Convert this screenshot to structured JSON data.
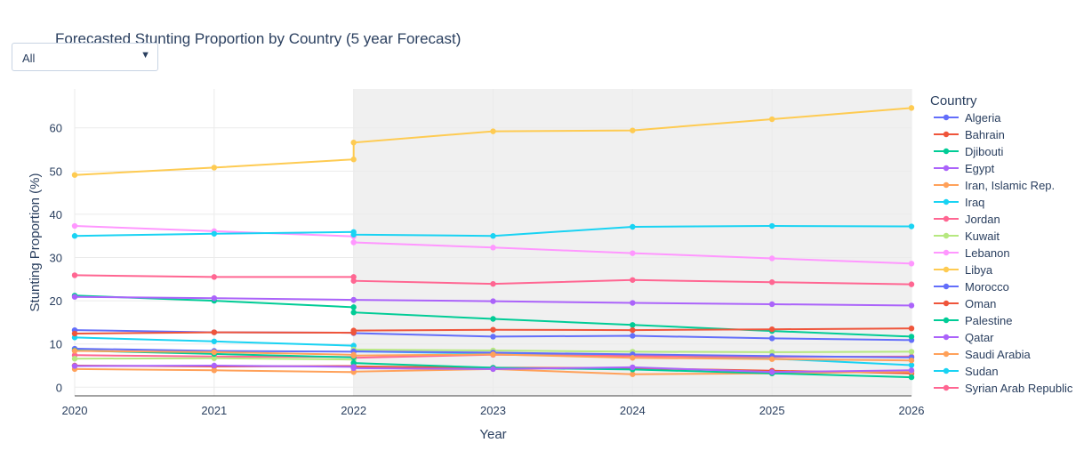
{
  "title": "Forecasted Stunting Proportion by Country (5 year Forecast)",
  "filter": {
    "value": "All"
  },
  "chart_data": {
    "type": "line",
    "title": "Forecasted Stunting Proportion by Country (5 year Forecast)",
    "xlabel": "Year",
    "ylabel": "Stunting Proportion (%)",
    "x_ticks": [
      "2020",
      "2021",
      "2022",
      "2023",
      "2024",
      "2025",
      "2026"
    ],
    "y_ticks": [
      "0",
      "10",
      "20",
      "30",
      "40",
      "50",
      "60"
    ],
    "xlim": [
      2020,
      2026
    ],
    "ylim": [
      -2,
      69
    ],
    "forecast_shade_start": 2022,
    "forecast_shade_color": "#f0f0f0",
    "legend_title": "Country",
    "legend_position": "right",
    "series": [
      {
        "name": "Algeria",
        "color": "#636efa",
        "x": [
          2020,
          2021,
          2022,
          2022,
          2023,
          2024,
          2025,
          2026
        ],
        "values": [
          13.2,
          12.7,
          12.6,
          12.5,
          11.7,
          11.9,
          11.3,
          10.9
        ]
      },
      {
        "name": "Bahrain",
        "color": "#ef553b",
        "x": [
          2020,
          2021,
          2022,
          2022,
          2023,
          2024,
          2025,
          2026
        ],
        "values": [
          5.0,
          4.8,
          4.9,
          4.8,
          4.5,
          4.4,
          3.8,
          3.2
        ]
      },
      {
        "name": "Djibouti",
        "color": "#00cc96",
        "x": [
          2020,
          2021,
          2022,
          2022,
          2023,
          2024,
          2025,
          2026
        ],
        "values": [
          21.2,
          20.0,
          18.5,
          17.3,
          15.8,
          14.4,
          13.0,
          11.7
        ]
      },
      {
        "name": "Egypt",
        "color": "#ab63fa",
        "x": [
          2020,
          2021,
          2022,
          2022,
          2023,
          2024,
          2025,
          2026
        ],
        "values": [
          20.9,
          20.6,
          20.2,
          20.2,
          19.9,
          19.5,
          19.2,
          18.9
        ]
      },
      {
        "name": "Iran, Islamic Rep.",
        "color": "#ffa15a",
        "x": [
          2020,
          2021,
          2022,
          2022,
          2023,
          2024,
          2025,
          2026
        ],
        "values": [
          4.2,
          3.9,
          3.5,
          3.6,
          4.2,
          3.0,
          3.2,
          3.6
        ]
      },
      {
        "name": "Iraq",
        "color": "#19d3f3",
        "x": [
          2020,
          2021,
          2022,
          2022,
          2023,
          2024,
          2025,
          2026
        ],
        "values": [
          11.5,
          10.6,
          9.6,
          8.3,
          7.8,
          7.4,
          6.6,
          5.1
        ]
      },
      {
        "name": "Jordan",
        "color": "#ff6692",
        "x": [
          2020,
          2021,
          2022,
          2022,
          2023,
          2024,
          2025,
          2026
        ],
        "values": [
          7.4,
          7.1,
          7.0,
          6.8,
          7.5,
          7.2,
          7.0,
          7.1
        ]
      },
      {
        "name": "Kuwait",
        "color": "#b6e880",
        "x": [
          2020,
          2021,
          2022,
          2022,
          2023,
          2024,
          2025,
          2026
        ],
        "values": [
          6.6,
          6.7,
          6.4,
          8.7,
          8.5,
          8.2,
          8.1,
          8.2
        ]
      },
      {
        "name": "Lebanon",
        "color": "#ff97ff",
        "x": [
          2020,
          2021,
          2022,
          2022,
          2023,
          2024,
          2025,
          2026
        ],
        "values": [
          37.3,
          36.1,
          34.9,
          33.5,
          32.3,
          31.0,
          29.8,
          28.6
        ]
      },
      {
        "name": "Libya",
        "color": "#fecb52",
        "x": [
          2020,
          2021,
          2022,
          2022,
          2023,
          2024,
          2025,
          2026
        ],
        "values": [
          49.1,
          50.8,
          52.7,
          56.6,
          59.2,
          59.4,
          62.0,
          64.6
        ]
      },
      {
        "name": "Morocco",
        "color": "#636efa",
        "x": [
          2020,
          2021,
          2022,
          2022,
          2023,
          2024,
          2025,
          2026
        ],
        "values": [
          8.9,
          8.4,
          8.2,
          8.3,
          8.0,
          7.6,
          7.2,
          6.9
        ]
      },
      {
        "name": "Oman",
        "color": "#ef553b",
        "x": [
          2020,
          2021,
          2022,
          2022,
          2023,
          2024,
          2025,
          2026
        ],
        "values": [
          12.4,
          12.7,
          12.6,
          13.1,
          13.3,
          13.2,
          13.4,
          13.6
        ]
      },
      {
        "name": "Palestine",
        "color": "#00cc96",
        "x": [
          2020,
          2021,
          2022,
          2022,
          2023,
          2024,
          2025,
          2026
        ],
        "values": [
          8.5,
          7.7,
          6.9,
          5.6,
          4.5,
          4.1,
          3.2,
          2.3
        ]
      },
      {
        "name": "Qatar",
        "color": "#ab63fa",
        "x": [
          2020,
          2021,
          2022,
          2022,
          2023,
          2024,
          2025,
          2026
        ],
        "values": [
          4.9,
          5.0,
          4.7,
          4.4,
          4.2,
          4.6,
          3.5,
          3.9
        ]
      },
      {
        "name": "Saudi Arabia",
        "color": "#ffa15a",
        "x": [
          2020,
          2021,
          2022,
          2022,
          2023,
          2024,
          2025,
          2026
        ],
        "values": [
          8.4,
          8.1,
          7.5,
          7.3,
          7.6,
          6.8,
          6.5,
          6.2
        ]
      },
      {
        "name": "Sudan",
        "color": "#19d3f3",
        "x": [
          2020,
          2021,
          2022,
          2022,
          2023,
          2024,
          2025,
          2026
        ],
        "values": [
          35.0,
          35.5,
          35.9,
          35.3,
          35.0,
          37.1,
          37.3,
          37.2
        ]
      },
      {
        "name": "Syrian Arab Republic",
        "color": "#ff6692",
        "x": [
          2020,
          2021,
          2022,
          2022,
          2023,
          2024,
          2025,
          2026
        ],
        "values": [
          25.9,
          25.5,
          25.5,
          24.6,
          23.9,
          24.8,
          24.3,
          23.8
        ]
      }
    ]
  }
}
